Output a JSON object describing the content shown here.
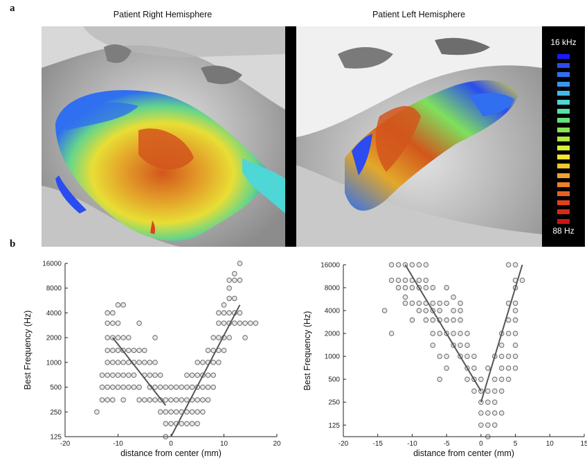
{
  "panel_a_label": "a",
  "panel_b_label": "b",
  "hemispheres": {
    "right_title": "Patient Right Hemisphere",
    "left_title": "Patient Left Hemisphere"
  },
  "colorbar": {
    "top_label": "16 kHz",
    "bottom_label": "88 Hz",
    "colors": [
      "#1a1aff",
      "#2a4cf0",
      "#2f6ff0",
      "#3a95ef",
      "#45b8e8",
      "#4fd6d6",
      "#55e0a8",
      "#66e07a",
      "#88e455",
      "#aeea40",
      "#d7ef35",
      "#f3e531",
      "#f4c52d",
      "#f1a22a",
      "#ec8026",
      "#e65f22",
      "#e0421d",
      "#d82a1a",
      "#cc1414"
    ]
  },
  "chart_data": [
    {
      "type": "scatter",
      "title": "",
      "xlabel": "distance from center (mm)",
      "ylabel": "Best Frequency (Hz)",
      "xlim": [
        -20,
        20
      ],
      "xticks": [
        -20,
        -10,
        0,
        10,
        20
      ],
      "yscale": "log2",
      "ylim": [
        125,
        16000
      ],
      "yticks": [
        125,
        250,
        500,
        1000,
        2000,
        4000,
        8000,
        16000
      ],
      "series": [
        {
          "points": [
            [
              -14,
              250
            ],
            [
              -13,
              350
            ],
            [
              -13,
              500
            ],
            [
              -13,
              700
            ],
            [
              -12,
              350
            ],
            [
              -12,
              500
            ],
            [
              -12,
              700
            ],
            [
              -12,
              1000
            ],
            [
              -12,
              1400
            ],
            [
              -12,
              2000
            ],
            [
              -12,
              3000
            ],
            [
              -12,
              4000
            ],
            [
              -11,
              350
            ],
            [
              -11,
              500
            ],
            [
              -11,
              700
            ],
            [
              -11,
              1000
            ],
            [
              -11,
              1400
            ],
            [
              -11,
              2000
            ],
            [
              -11,
              3000
            ],
            [
              -11,
              4000
            ],
            [
              -10,
              500
            ],
            [
              -10,
              700
            ],
            [
              -10,
              1000
            ],
            [
              -10,
              1400
            ],
            [
              -10,
              2000
            ],
            [
              -10,
              3000
            ],
            [
              -10,
              5000
            ],
            [
              -9,
              350
            ],
            [
              -9,
              500
            ],
            [
              -9,
              700
            ],
            [
              -9,
              1000
            ],
            [
              -9,
              1400
            ],
            [
              -9,
              2000
            ],
            [
              -9,
              5000
            ],
            [
              -8,
              500
            ],
            [
              -8,
              1000
            ],
            [
              -8,
              1400
            ],
            [
              -8,
              2000
            ],
            [
              -8,
              700
            ],
            [
              -7,
              500
            ],
            [
              -7,
              700
            ],
            [
              -7,
              1000
            ],
            [
              -7,
              1400
            ],
            [
              -6,
              350
            ],
            [
              -6,
              500
            ],
            [
              -6,
              1000
            ],
            [
              -6,
              1400
            ],
            [
              -6,
              3000
            ],
            [
              -5,
              350
            ],
            [
              -5,
              700
            ],
            [
              -5,
              1000
            ],
            [
              -5,
              1400
            ],
            [
              -4,
              350
            ],
            [
              -4,
              500
            ],
            [
              -4,
              700
            ],
            [
              -4,
              1000
            ],
            [
              -3,
              350
            ],
            [
              -3,
              500
            ],
            [
              -3,
              700
            ],
            [
              -3,
              1000
            ],
            [
              -3,
              2000
            ],
            [
              -2,
              250
            ],
            [
              -2,
              350
            ],
            [
              -2,
              500
            ],
            [
              -2,
              700
            ],
            [
              -1,
              125
            ],
            [
              -1,
              180
            ],
            [
              -1,
              250
            ],
            [
              -1,
              350
            ],
            [
              -1,
              500
            ],
            [
              0,
              180
            ],
            [
              0,
              250
            ],
            [
              0,
              350
            ],
            [
              0,
              500
            ],
            [
              1,
              180
            ],
            [
              1,
              250
            ],
            [
              1,
              350
            ],
            [
              1,
              500
            ],
            [
              2,
              180
            ],
            [
              2,
              250
            ],
            [
              2,
              350
            ],
            [
              2,
              500
            ],
            [
              3,
              180
            ],
            [
              3,
              250
            ],
            [
              3,
              350
            ],
            [
              3,
              500
            ],
            [
              3,
              700
            ],
            [
              4,
              180
            ],
            [
              4,
              250
            ],
            [
              4,
              350
            ],
            [
              4,
              500
            ],
            [
              4,
              700
            ],
            [
              5,
              180
            ],
            [
              5,
              250
            ],
            [
              5,
              350
            ],
            [
              5,
              500
            ],
            [
              5,
              700
            ],
            [
              5,
              1000
            ],
            [
              6,
              250
            ],
            [
              6,
              350
            ],
            [
              6,
              500
            ],
            [
              6,
              700
            ],
            [
              6,
              1000
            ],
            [
              7,
              350
            ],
            [
              7,
              500
            ],
            [
              7,
              700
            ],
            [
              7,
              1000
            ],
            [
              7,
              1400
            ],
            [
              8,
              500
            ],
            [
              8,
              700
            ],
            [
              8,
              1000
            ],
            [
              8,
              1400
            ],
            [
              8,
              2000
            ],
            [
              9,
              1000
            ],
            [
              9,
              1400
            ],
            [
              9,
              2000
            ],
            [
              9,
              3000
            ],
            [
              9,
              4000
            ],
            [
              10,
              1400
            ],
            [
              10,
              2000
            ],
            [
              10,
              3000
            ],
            [
              10,
              4000
            ],
            [
              10,
              5000
            ],
            [
              11,
              2000
            ],
            [
              11,
              3000
            ],
            [
              11,
              4000
            ],
            [
              11,
              6000
            ],
            [
              11,
              8000
            ],
            [
              11,
              10000
            ],
            [
              12,
              3000
            ],
            [
              12,
              4000
            ],
            [
              12,
              6000
            ],
            [
              12,
              10000
            ],
            [
              12,
              12000
            ],
            [
              13,
              3000
            ],
            [
              13,
              4000
            ],
            [
              13,
              10000
            ],
            [
              13,
              16000
            ],
            [
              14,
              2000
            ],
            [
              14,
              3000
            ],
            [
              15,
              3000
            ],
            [
              16,
              3000
            ]
          ]
        }
      ],
      "fit_lines": [
        {
          "from": [
            -11,
            2000
          ],
          "to": [
            -1,
            300
          ]
        },
        {
          "from": [
            0,
            125
          ],
          "to": [
            13,
            5000
          ]
        }
      ]
    },
    {
      "type": "scatter",
      "title": "",
      "xlabel": "distance from center (mm)",
      "ylabel": "Best Frequency (Hz)",
      "xlim": [
        -20,
        15
      ],
      "xticks": [
        -20,
        -15,
        -10,
        -5,
        0,
        5,
        10,
        15
      ],
      "yscale": "log2",
      "ylim": [
        88,
        16000
      ],
      "yticks": [
        125,
        250,
        500,
        1000,
        2000,
        4000,
        8000,
        16000
      ],
      "series": [
        {
          "points": [
            [
              -14,
              4000
            ],
            [
              -13,
              2000
            ],
            [
              -13,
              16000
            ],
            [
              -13,
              10000
            ],
            [
              -12,
              8000
            ],
            [
              -12,
              10000
            ],
            [
              -12,
              16000
            ],
            [
              -11,
              5000
            ],
            [
              -11,
              6000
            ],
            [
              -11,
              8000
            ],
            [
              -11,
              10000
            ],
            [
              -11,
              16000
            ],
            [
              -10,
              3000
            ],
            [
              -10,
              5000
            ],
            [
              -10,
              8000
            ],
            [
              -10,
              10000
            ],
            [
              -10,
              16000
            ],
            [
              -9,
              4000
            ],
            [
              -9,
              5000
            ],
            [
              -9,
              8000
            ],
            [
              -9,
              10000
            ],
            [
              -9,
              16000
            ],
            [
              -8,
              3000
            ],
            [
              -8,
              4000
            ],
            [
              -8,
              5000
            ],
            [
              -8,
              8000
            ],
            [
              -8,
              10000
            ],
            [
              -8,
              16000
            ],
            [
              -7,
              1400
            ],
            [
              -7,
              2000
            ],
            [
              -7,
              3000
            ],
            [
              -7,
              4000
            ],
            [
              -7,
              5000
            ],
            [
              -7,
              8000
            ],
            [
              -6,
              500
            ],
            [
              -6,
              1000
            ],
            [
              -6,
              2000
            ],
            [
              -6,
              3000
            ],
            [
              -6,
              4000
            ],
            [
              -6,
              5000
            ],
            [
              -5,
              700
            ],
            [
              -5,
              1000
            ],
            [
              -5,
              2000
            ],
            [
              -5,
              3000
            ],
            [
              -5,
              5000
            ],
            [
              -5,
              8000
            ],
            [
              -4,
              1400
            ],
            [
              -4,
              2000
            ],
            [
              -4,
              3000
            ],
            [
              -4,
              4000
            ],
            [
              -4,
              6000
            ],
            [
              -3,
              1000
            ],
            [
              -3,
              1400
            ],
            [
              -3,
              2000
            ],
            [
              -3,
              3000
            ],
            [
              -3,
              4000
            ],
            [
              -3,
              5000
            ],
            [
              -2,
              500
            ],
            [
              -2,
              700
            ],
            [
              -2,
              1000
            ],
            [
              -2,
              1400
            ],
            [
              -2,
              2000
            ],
            [
              -1,
              350
            ],
            [
              -1,
              500
            ],
            [
              -1,
              700
            ],
            [
              -1,
              1000
            ],
            [
              0,
              125
            ],
            [
              0,
              180
            ],
            [
              0,
              250
            ],
            [
              0,
              350
            ],
            [
              0,
              500
            ],
            [
              1,
              88
            ],
            [
              1,
              125
            ],
            [
              1,
              180
            ],
            [
              1,
              250
            ],
            [
              1,
              350
            ],
            [
              1,
              700
            ],
            [
              2,
              125
            ],
            [
              2,
              180
            ],
            [
              2,
              250
            ],
            [
              2,
              350
            ],
            [
              2,
              500
            ],
            [
              2,
              1000
            ],
            [
              3,
              180
            ],
            [
              3,
              350
            ],
            [
              3,
              500
            ],
            [
              3,
              700
            ],
            [
              3,
              1000
            ],
            [
              3,
              1400
            ],
            [
              3,
              2000
            ],
            [
              4,
              500
            ],
            [
              4,
              700
            ],
            [
              4,
              1000
            ],
            [
              4,
              2000
            ],
            [
              4,
              3000
            ],
            [
              4,
              5000
            ],
            [
              4,
              16000
            ],
            [
              5,
              700
            ],
            [
              5,
              1000
            ],
            [
              5,
              1400
            ],
            [
              5,
              2000
            ],
            [
              5,
              3000
            ],
            [
              5,
              4000
            ],
            [
              5,
              5000
            ],
            [
              5,
              8000
            ],
            [
              5,
              10000
            ],
            [
              5,
              16000
            ],
            [
              6,
              10000
            ]
          ]
        }
      ],
      "fit_lines": [
        {
          "from": [
            -11,
            16000
          ],
          "to": [
            0,
            350
          ]
        },
        {
          "from": [
            0,
            250
          ],
          "to": [
            6,
            16000
          ]
        }
      ]
    }
  ]
}
